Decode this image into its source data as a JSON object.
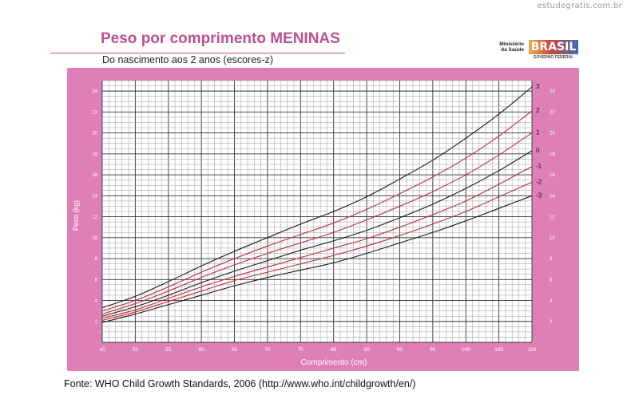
{
  "watermark": "estudegratis.com.br",
  "header": {
    "title": "Peso por comprimento MENINAS",
    "subtitle": "Do nascimento aos 2 anos (escores-z)",
    "logo_ministry": "Ministério da Saúde",
    "logo_brand": "BRASIL",
    "logo_sub": "GOVERNO FEDERAL"
  },
  "source": "Fonte: WHO Child Growth Standards, 2006 (http://www.who.int/childgrowth/en/)",
  "colors": {
    "frame": "#de7fb6",
    "plot_bg": "#ffffff",
    "grid_minor": "#9a9a9a",
    "grid_major": "#333333",
    "curve_black": "#1a1a1a",
    "curve_red": "#c42a38"
  },
  "chart_data": {
    "type": "line",
    "xlabel": "Comprimento (cm)",
    "ylabel": "Peso (kg)",
    "xlim": [
      45,
      110
    ],
    "ylim": [
      0,
      25
    ],
    "x_ticks": [
      45,
      50,
      55,
      60,
      65,
      70,
      75,
      80,
      85,
      90,
      95,
      100,
      105,
      110
    ],
    "y_ticks": [
      2,
      4,
      6,
      8,
      10,
      12,
      14,
      16,
      18,
      20,
      22,
      24
    ],
    "grid": true,
    "x": [
      45,
      50,
      55,
      60,
      65,
      70,
      75,
      80,
      85,
      90,
      95,
      100,
      105,
      110
    ],
    "series": [
      {
        "name": "3",
        "color_key": "curve_black",
        "values": [
          3.3,
          4.4,
          5.8,
          7.3,
          8.7,
          10.0,
          11.3,
          12.5,
          13.9,
          15.6,
          17.4,
          19.5,
          21.8,
          24.4
        ]
      },
      {
        "name": "2",
        "color_key": "curve_red",
        "values": [
          3.0,
          4.0,
          5.3,
          6.7,
          8.0,
          9.2,
          10.3,
          11.4,
          12.7,
          14.2,
          15.8,
          17.6,
          19.7,
          22.1
        ]
      },
      {
        "name": "1",
        "color_key": "curve_red",
        "values": [
          2.7,
          3.7,
          4.9,
          6.2,
          7.4,
          8.5,
          9.5,
          10.5,
          11.7,
          13.0,
          14.4,
          16.0,
          17.9,
          20.0
        ]
      },
      {
        "name": "0",
        "color_key": "curve_black",
        "values": [
          2.5,
          3.4,
          4.5,
          5.7,
          6.8,
          7.8,
          8.8,
          9.7,
          10.7,
          11.9,
          13.2,
          14.7,
          16.4,
          18.3
        ]
      },
      {
        "name": "-1",
        "color_key": "curve_red",
        "values": [
          2.3,
          3.1,
          4.2,
          5.3,
          6.3,
          7.2,
          8.1,
          9.0,
          9.9,
          11.0,
          12.2,
          13.5,
          15.1,
          16.8
        ]
      },
      {
        "name": "-2",
        "color_key": "curve_red",
        "values": [
          2.1,
          2.9,
          3.9,
          4.9,
          5.9,
          6.7,
          7.5,
          8.3,
          9.2,
          10.2,
          11.3,
          12.5,
          13.9,
          15.3
        ]
      },
      {
        "name": "-3",
        "color_key": "curve_black",
        "values": [
          1.9,
          2.7,
          3.6,
          4.5,
          5.4,
          6.2,
          6.9,
          7.6,
          8.5,
          9.5,
          10.5,
          11.6,
          12.8,
          14.0
        ]
      }
    ]
  }
}
